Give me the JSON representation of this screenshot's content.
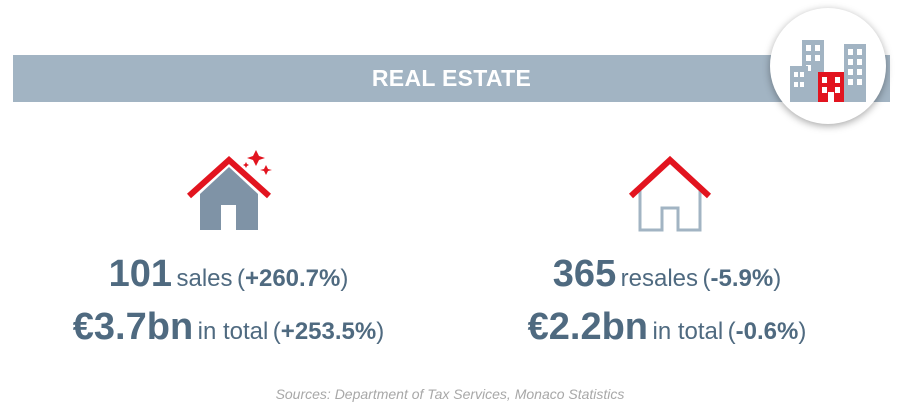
{
  "banner": {
    "title": "REAL ESTATE"
  },
  "icons": {
    "badge": "buildings-icon",
    "new_homes": "new-house-icon",
    "resales": "house-outline-icon"
  },
  "colors": {
    "banner": "#a2b4c3",
    "text": "#4f6a80",
    "accent": "#e2141f",
    "source": "#a8a8a8"
  },
  "new_sales": {
    "count": "101",
    "count_label": "sales",
    "count_change": "+260.7%",
    "value": "€3.7bn",
    "value_label": "in total",
    "value_change": "+253.5%"
  },
  "resales": {
    "count": "365",
    "count_label": "resales",
    "count_change": "-5.9%",
    "value": "€2.2bn",
    "value_label": "in total",
    "value_change": "-0.6%"
  },
  "source": "Sources: Department of Tax Services, Monaco Statistics"
}
